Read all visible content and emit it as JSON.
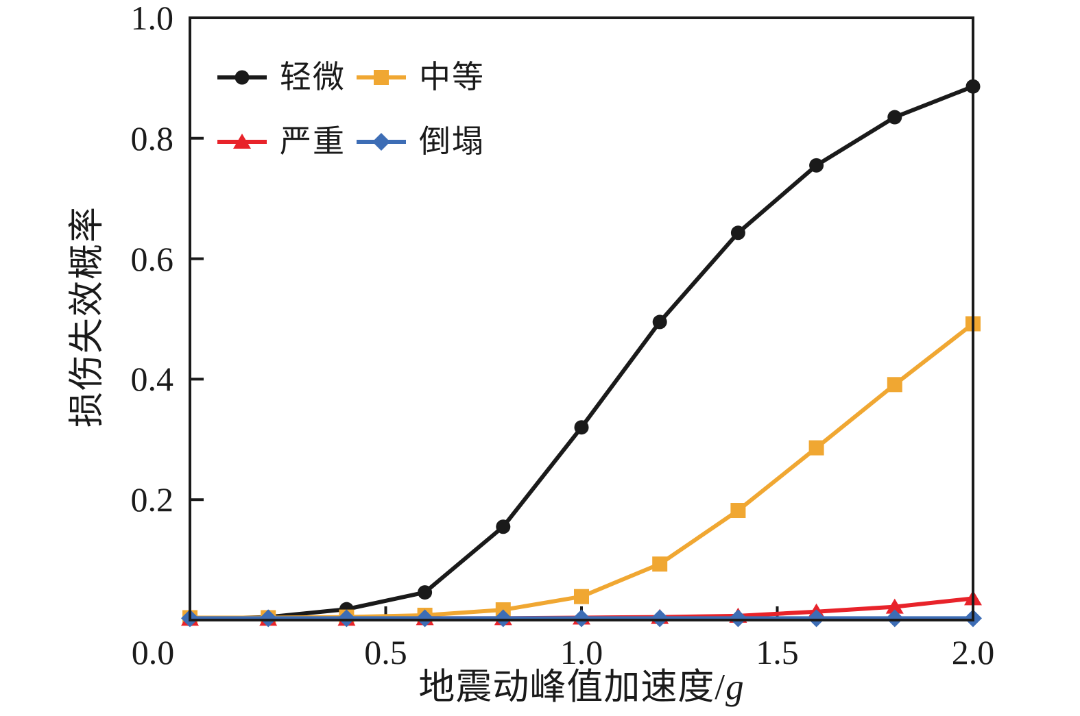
{
  "chart_data": {
    "type": "line",
    "title": "",
    "xlabel": "地震动峰值加速度/g",
    "xlabel_prefix": "地震动峰值加速度/",
    "xlabel_italic": "g",
    "ylabel": "损伤失效概率",
    "xlim": [
      0.0,
      2.0
    ],
    "ylim": [
      0.0,
      1.0
    ],
    "grid": false,
    "legend_position": "top-left",
    "frame": "full-box",
    "tick_direction": "in",
    "axis_color": "#1a1a1a",
    "x_tick_labels": [
      "0.0",
      "0.5",
      "1.0",
      "1.5",
      "2.0"
    ],
    "x_tick_values": [
      0.0,
      0.5,
      1.0,
      1.5,
      2.0
    ],
    "y_tick_labels": [
      "0.2",
      "0.4",
      "0.6",
      "0.8",
      "1.0"
    ],
    "y_tick_values": [
      0.2,
      0.4,
      0.6,
      0.8,
      1.0
    ],
    "x": [
      0.0,
      0.2,
      0.4,
      0.6,
      0.8,
      1.0,
      1.2,
      1.4,
      1.6,
      1.8,
      2.0
    ],
    "series": [
      {
        "name": "轻微",
        "marker": "circle",
        "color": "#1a1a1a",
        "values": [
          0.002,
          0.005,
          0.018,
          0.046,
          0.155,
          0.32,
          0.495,
          0.643,
          0.755,
          0.835,
          0.886
        ]
      },
      {
        "name": "中等",
        "marker": "square",
        "color": "#f0a732",
        "values": [
          0.004,
          0.004,
          0.005,
          0.008,
          0.017,
          0.039,
          0.093,
          0.182,
          0.286,
          0.391,
          0.492
        ]
      },
      {
        "name": "严重",
        "marker": "triangle",
        "color": "#e8232a",
        "values": [
          0.002,
          0.002,
          0.002,
          0.003,
          0.003,
          0.004,
          0.005,
          0.007,
          0.014,
          0.022,
          0.036
        ]
      },
      {
        "name": "倒塌",
        "marker": "diamond",
        "color": "#3d6db5",
        "values": [
          0.003,
          0.003,
          0.003,
          0.003,
          0.003,
          0.003,
          0.003,
          0.003,
          0.003,
          0.003,
          0.003
        ]
      }
    ]
  }
}
